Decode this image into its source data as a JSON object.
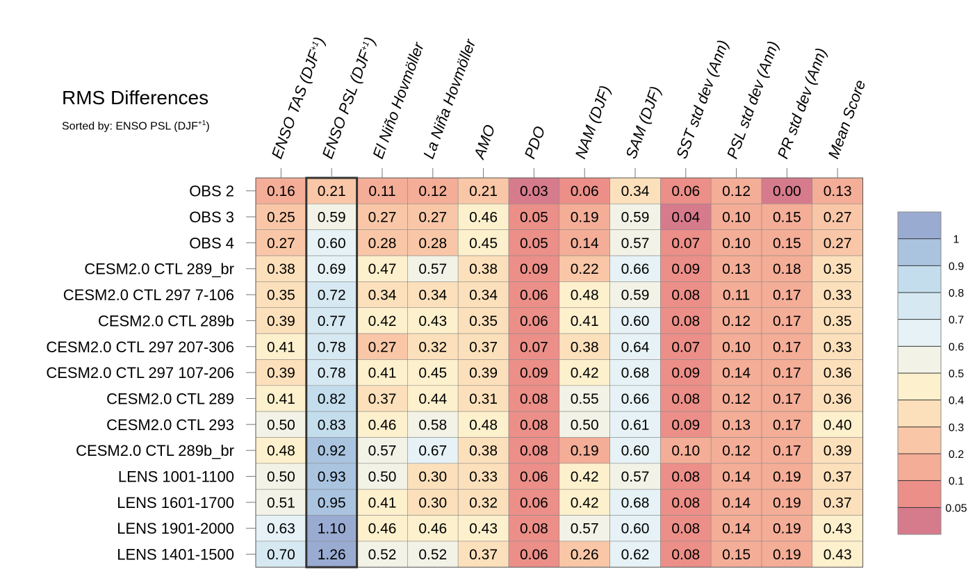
{
  "chart_data": {
    "type": "heatmap",
    "title": "RMS Differences",
    "subtitle_prefix": "Sorted by: ENSO PSL (DJF",
    "subtitle_sup": "+1",
    "subtitle_suffix": ")",
    "highlighted_column": "ENSO PSL (DJF+1)",
    "columns": [
      {
        "label": "ENSO TAS (DJF",
        "sup": "+1",
        "suffix": ")"
      },
      {
        "label": "ENSO PSL (DJF",
        "sup": "+1",
        "suffix": ")"
      },
      {
        "label": "El Niño Hovmöller",
        "sup": "",
        "suffix": ""
      },
      {
        "label": "La Niña Hovmöller",
        "sup": "",
        "suffix": ""
      },
      {
        "label": "AMO",
        "sup": "",
        "suffix": ""
      },
      {
        "label": "PDO",
        "sup": "",
        "suffix": ""
      },
      {
        "label": "NAM (DJF)",
        "sup": "",
        "suffix": ""
      },
      {
        "label": "SAM (DJF)",
        "sup": "",
        "suffix": ""
      },
      {
        "label": "SST std dev (Ann)",
        "sup": "",
        "suffix": ""
      },
      {
        "label": "PSL std dev (Ann)",
        "sup": "",
        "suffix": ""
      },
      {
        "label": "PR std dev (Ann)",
        "sup": "",
        "suffix": ""
      },
      {
        "label": "Mean Score",
        "sup": "",
        "suffix": ""
      }
    ],
    "rows": [
      "OBS 2",
      "OBS 3",
      "OBS 4",
      "CESM2.0 CTL 289_br",
      "CESM2.0 CTL 297 7-106",
      "CESM2.0 CTL 289b",
      "CESM2.0 CTL 297 207-306",
      "CESM2.0 CTL 297 107-206",
      "CESM2.0 CTL 289",
      "CESM2.0 CTL 293",
      "CESM2.0 CTL 289b_br",
      "LENS 1001-1100",
      "LENS 1601-1700",
      "LENS 1901-2000",
      "LENS 1401-1500"
    ],
    "values": [
      [
        "0.16",
        "0.21",
        "0.11",
        "0.12",
        "0.21",
        "0.03",
        "0.06",
        "0.34",
        "0.06",
        "0.12",
        "0.00",
        "0.13"
      ],
      [
        "0.25",
        "0.59",
        "0.27",
        "0.27",
        "0.46",
        "0.05",
        "0.19",
        "0.59",
        "0.04",
        "0.10",
        "0.15",
        "0.27"
      ],
      [
        "0.27",
        "0.60",
        "0.28",
        "0.28",
        "0.45",
        "0.05",
        "0.14",
        "0.57",
        "0.07",
        "0.10",
        "0.15",
        "0.27"
      ],
      [
        "0.38",
        "0.69",
        "0.47",
        "0.57",
        "0.38",
        "0.09",
        "0.22",
        "0.66",
        "0.09",
        "0.13",
        "0.18",
        "0.35"
      ],
      [
        "0.35",
        "0.72",
        "0.34",
        "0.34",
        "0.34",
        "0.06",
        "0.48",
        "0.59",
        "0.08",
        "0.11",
        "0.17",
        "0.33"
      ],
      [
        "0.39",
        "0.77",
        "0.42",
        "0.43",
        "0.35",
        "0.06",
        "0.41",
        "0.60",
        "0.08",
        "0.12",
        "0.17",
        "0.35"
      ],
      [
        "0.41",
        "0.78",
        "0.27",
        "0.32",
        "0.37",
        "0.07",
        "0.38",
        "0.64",
        "0.07",
        "0.10",
        "0.17",
        "0.33"
      ],
      [
        "0.39",
        "0.78",
        "0.41",
        "0.45",
        "0.39",
        "0.09",
        "0.42",
        "0.68",
        "0.09",
        "0.14",
        "0.17",
        "0.36"
      ],
      [
        "0.41",
        "0.82",
        "0.37",
        "0.44",
        "0.31",
        "0.08",
        "0.55",
        "0.66",
        "0.08",
        "0.12",
        "0.17",
        "0.36"
      ],
      [
        "0.50",
        "0.83",
        "0.46",
        "0.58",
        "0.48",
        "0.08",
        "0.50",
        "0.61",
        "0.09",
        "0.13",
        "0.17",
        "0.40"
      ],
      [
        "0.48",
        "0.92",
        "0.57",
        "0.67",
        "0.38",
        "0.08",
        "0.19",
        "0.60",
        "0.10",
        "0.12",
        "0.17",
        "0.39"
      ],
      [
        "0.50",
        "0.93",
        "0.50",
        "0.30",
        "0.33",
        "0.06",
        "0.42",
        "0.57",
        "0.08",
        "0.14",
        "0.19",
        "0.37"
      ],
      [
        "0.51",
        "0.95",
        "0.41",
        "0.30",
        "0.32",
        "0.06",
        "0.42",
        "0.68",
        "0.08",
        "0.14",
        "0.19",
        "0.37"
      ],
      [
        "0.63",
        "1.10",
        "0.46",
        "0.46",
        "0.43",
        "0.08",
        "0.57",
        "0.60",
        "0.08",
        "0.14",
        "0.19",
        "0.43"
      ],
      [
        "0.70",
        "1.26",
        "0.52",
        "0.52",
        "0.37",
        "0.06",
        "0.26",
        "0.62",
        "0.08",
        "0.15",
        "0.19",
        "0.43"
      ]
    ],
    "colorbar": {
      "labels": [
        "1",
        "0.9",
        "0.8",
        "0.7",
        "0.6",
        "0.5",
        "0.4",
        "0.3",
        "0.2",
        "0.1",
        "0.05"
      ],
      "bins": [
        {
          "min": 1.0,
          "color": "#9aabd2"
        },
        {
          "min": 0.9,
          "color": "#aac4e0"
        },
        {
          "min": 0.8,
          "color": "#c3ddec"
        },
        {
          "min": 0.7,
          "color": "#d6e8f1"
        },
        {
          "min": 0.6,
          "color": "#e6f2f5"
        },
        {
          "min": 0.5,
          "color": "#f2f2e6"
        },
        {
          "min": 0.4,
          "color": "#fdf0cc"
        },
        {
          "min": 0.3,
          "color": "#fce0bb"
        },
        {
          "min": 0.2,
          "color": "#f9c7a7"
        },
        {
          "min": 0.1,
          "color": "#f4ad97"
        },
        {
          "min": 0.05,
          "color": "#eb8f88"
        },
        {
          "min": 0.0,
          "color": "#d67b8c"
        }
      ]
    }
  }
}
